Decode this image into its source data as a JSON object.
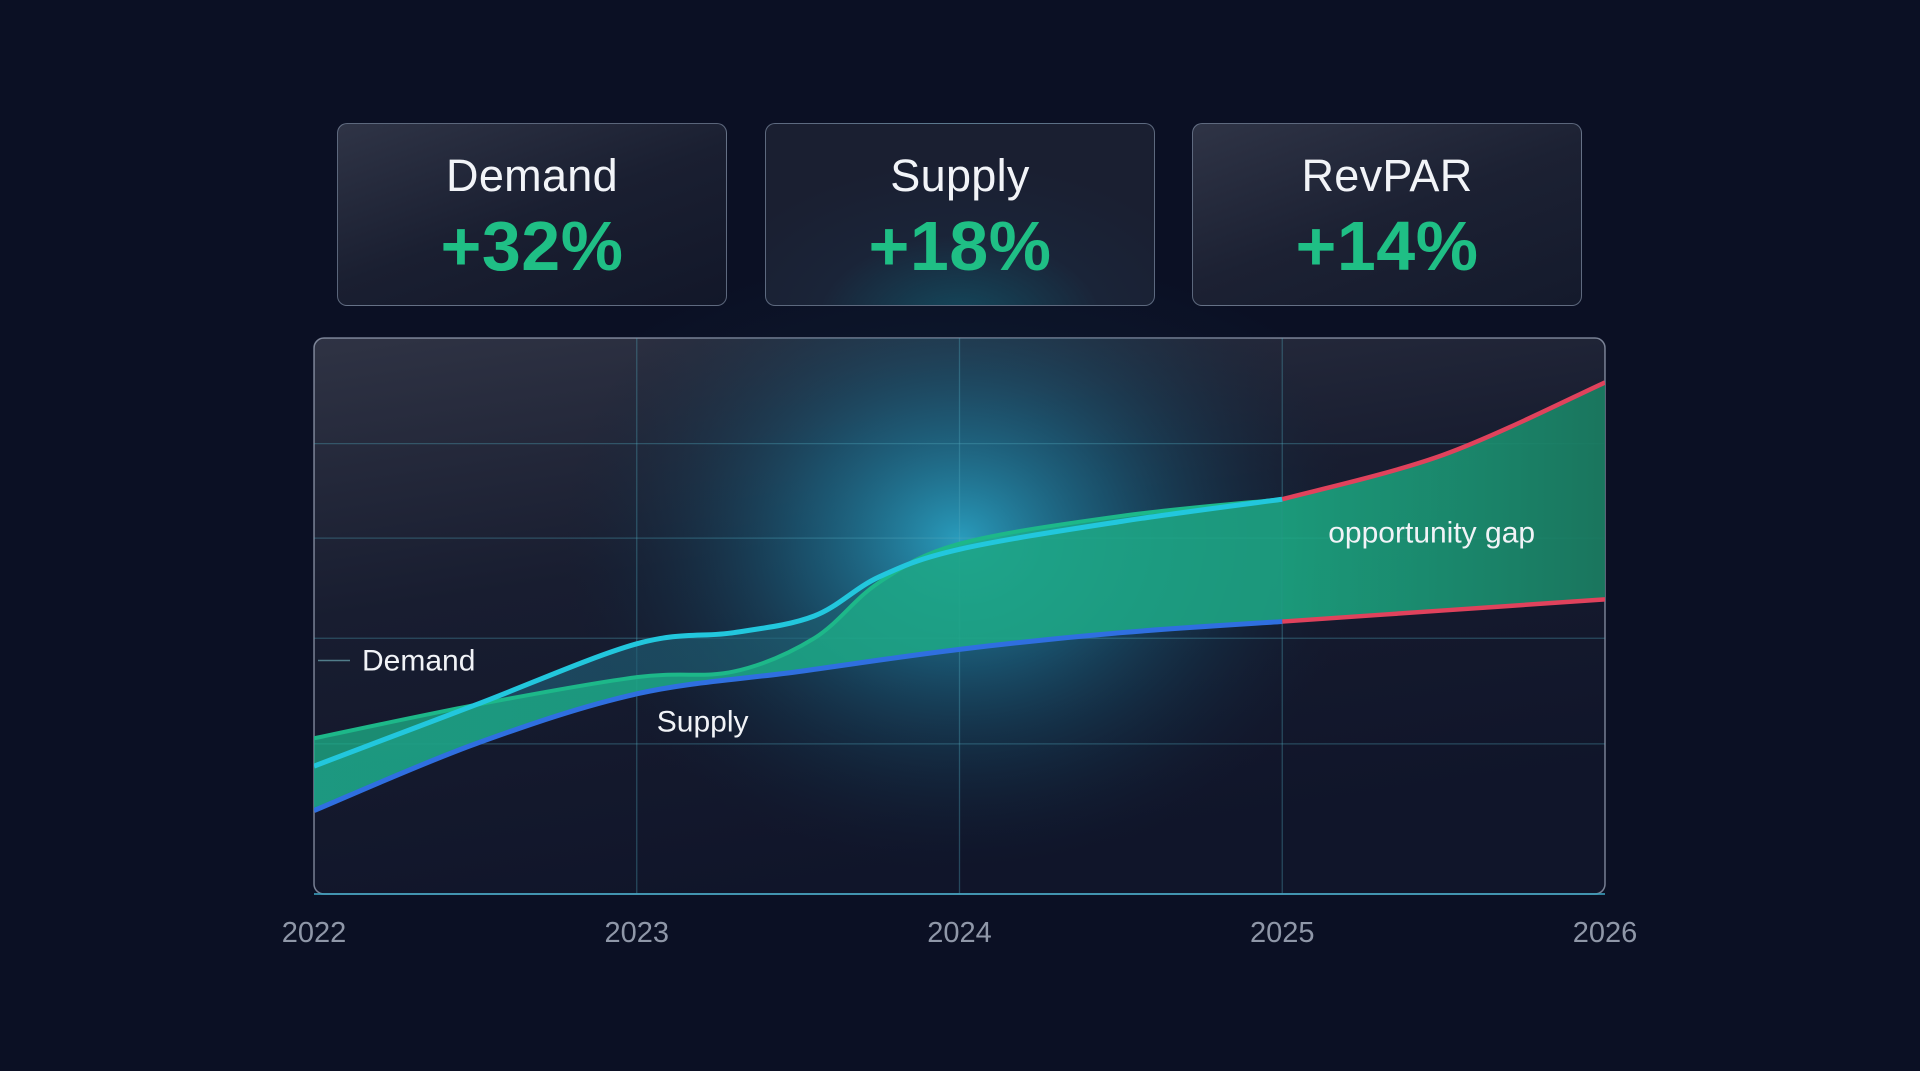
{
  "kpis": [
    {
      "label": "Demand",
      "value": "+32%"
    },
    {
      "label": "Supply",
      "value": "+18%"
    },
    {
      "label": "RevPAR",
      "value": "+14%"
    }
  ],
  "chart_data": {
    "type": "area",
    "x_ticks": [
      "2022",
      "2023",
      "2024",
      "2025",
      "2026"
    ],
    "xlim": [
      2022,
      2026
    ],
    "ylim": [
      0,
      100
    ],
    "grid": true,
    "series": [
      {
        "name": "Demand",
        "color": "#1db889",
        "x": [
          2022.0,
          2022.5,
          2023.0,
          2023.3,
          2023.55,
          2023.75,
          2024.0,
          2024.5,
          2025.0
        ],
        "values": [
          28,
          34,
          39,
          40,
          46,
          56,
          63,
          68,
          71
        ]
      },
      {
        "name": "",
        "color": "#22c7dd",
        "x": [
          2022.0,
          2022.5,
          2023.0,
          2023.3,
          2023.55,
          2023.75,
          2024.0,
          2024.5,
          2025.0
        ],
        "values": [
          23,
          34,
          45,
          47,
          50,
          57,
          62,
          67,
          71
        ]
      },
      {
        "name": "Supply",
        "color": "#2f6fe0",
        "x": [
          2022.0,
          2022.5,
          2023.0,
          2023.5,
          2024.0,
          2024.5,
          2025.0
        ],
        "values": [
          15,
          27,
          36,
          40,
          44,
          47,
          49
        ]
      }
    ],
    "projection": {
      "color": "#e0425c",
      "x": [
        2025.0,
        2025.5,
        2026.0
      ],
      "upper": [
        71,
        79,
        92
      ],
      "lower": [
        49,
        51,
        53
      ]
    },
    "annotations": [
      "opportunity gap"
    ]
  }
}
